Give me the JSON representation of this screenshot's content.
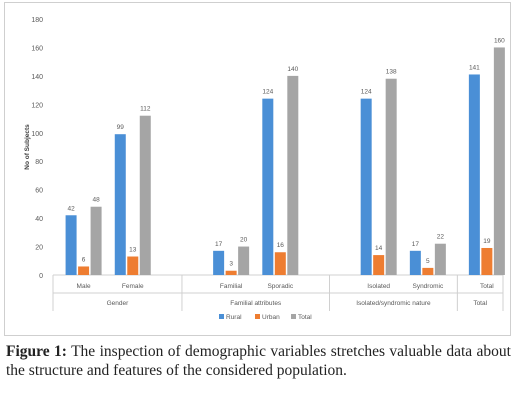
{
  "chart_data": {
    "type": "bar",
    "ylabel": "No of Subjects",
    "ylim": [
      0,
      180
    ],
    "yticks": [
      0,
      20,
      40,
      60,
      80,
      100,
      120,
      140,
      160,
      180
    ],
    "grid": false,
    "legend_position": "bottom",
    "categories": [
      "Male",
      "Female",
      "Familial",
      "Sporadic",
      "Isolated",
      "Syndromic",
      "Total"
    ],
    "groups": [
      {
        "label": "Gender",
        "categories": [
          "Male",
          "Female"
        ]
      },
      {
        "label": "Familial attributes",
        "categories": [
          "Familial",
          "Sporadic"
        ]
      },
      {
        "label": "Isolated/syndromic nature",
        "categories": [
          "Isolated",
          "Syndromic"
        ]
      },
      {
        "label": "Total",
        "categories": [
          "Total"
        ]
      }
    ],
    "series": [
      {
        "name": "Rural",
        "color": "#4a8fd6",
        "values": [
          42,
          99,
          17,
          124,
          124,
          17,
          141
        ]
      },
      {
        "name": "Urban",
        "color": "#ee7d31",
        "values": [
          6,
          13,
          3,
          16,
          14,
          5,
          19
        ]
      },
      {
        "name": "Total",
        "color": "#a5a5a5",
        "values": [
          48,
          112,
          20,
          140,
          138,
          22,
          160
        ]
      }
    ]
  },
  "caption": {
    "label": "Figure 1:",
    "text": " The inspection of demographic variables stretches valuable data about the structure and features of the considered population."
  }
}
